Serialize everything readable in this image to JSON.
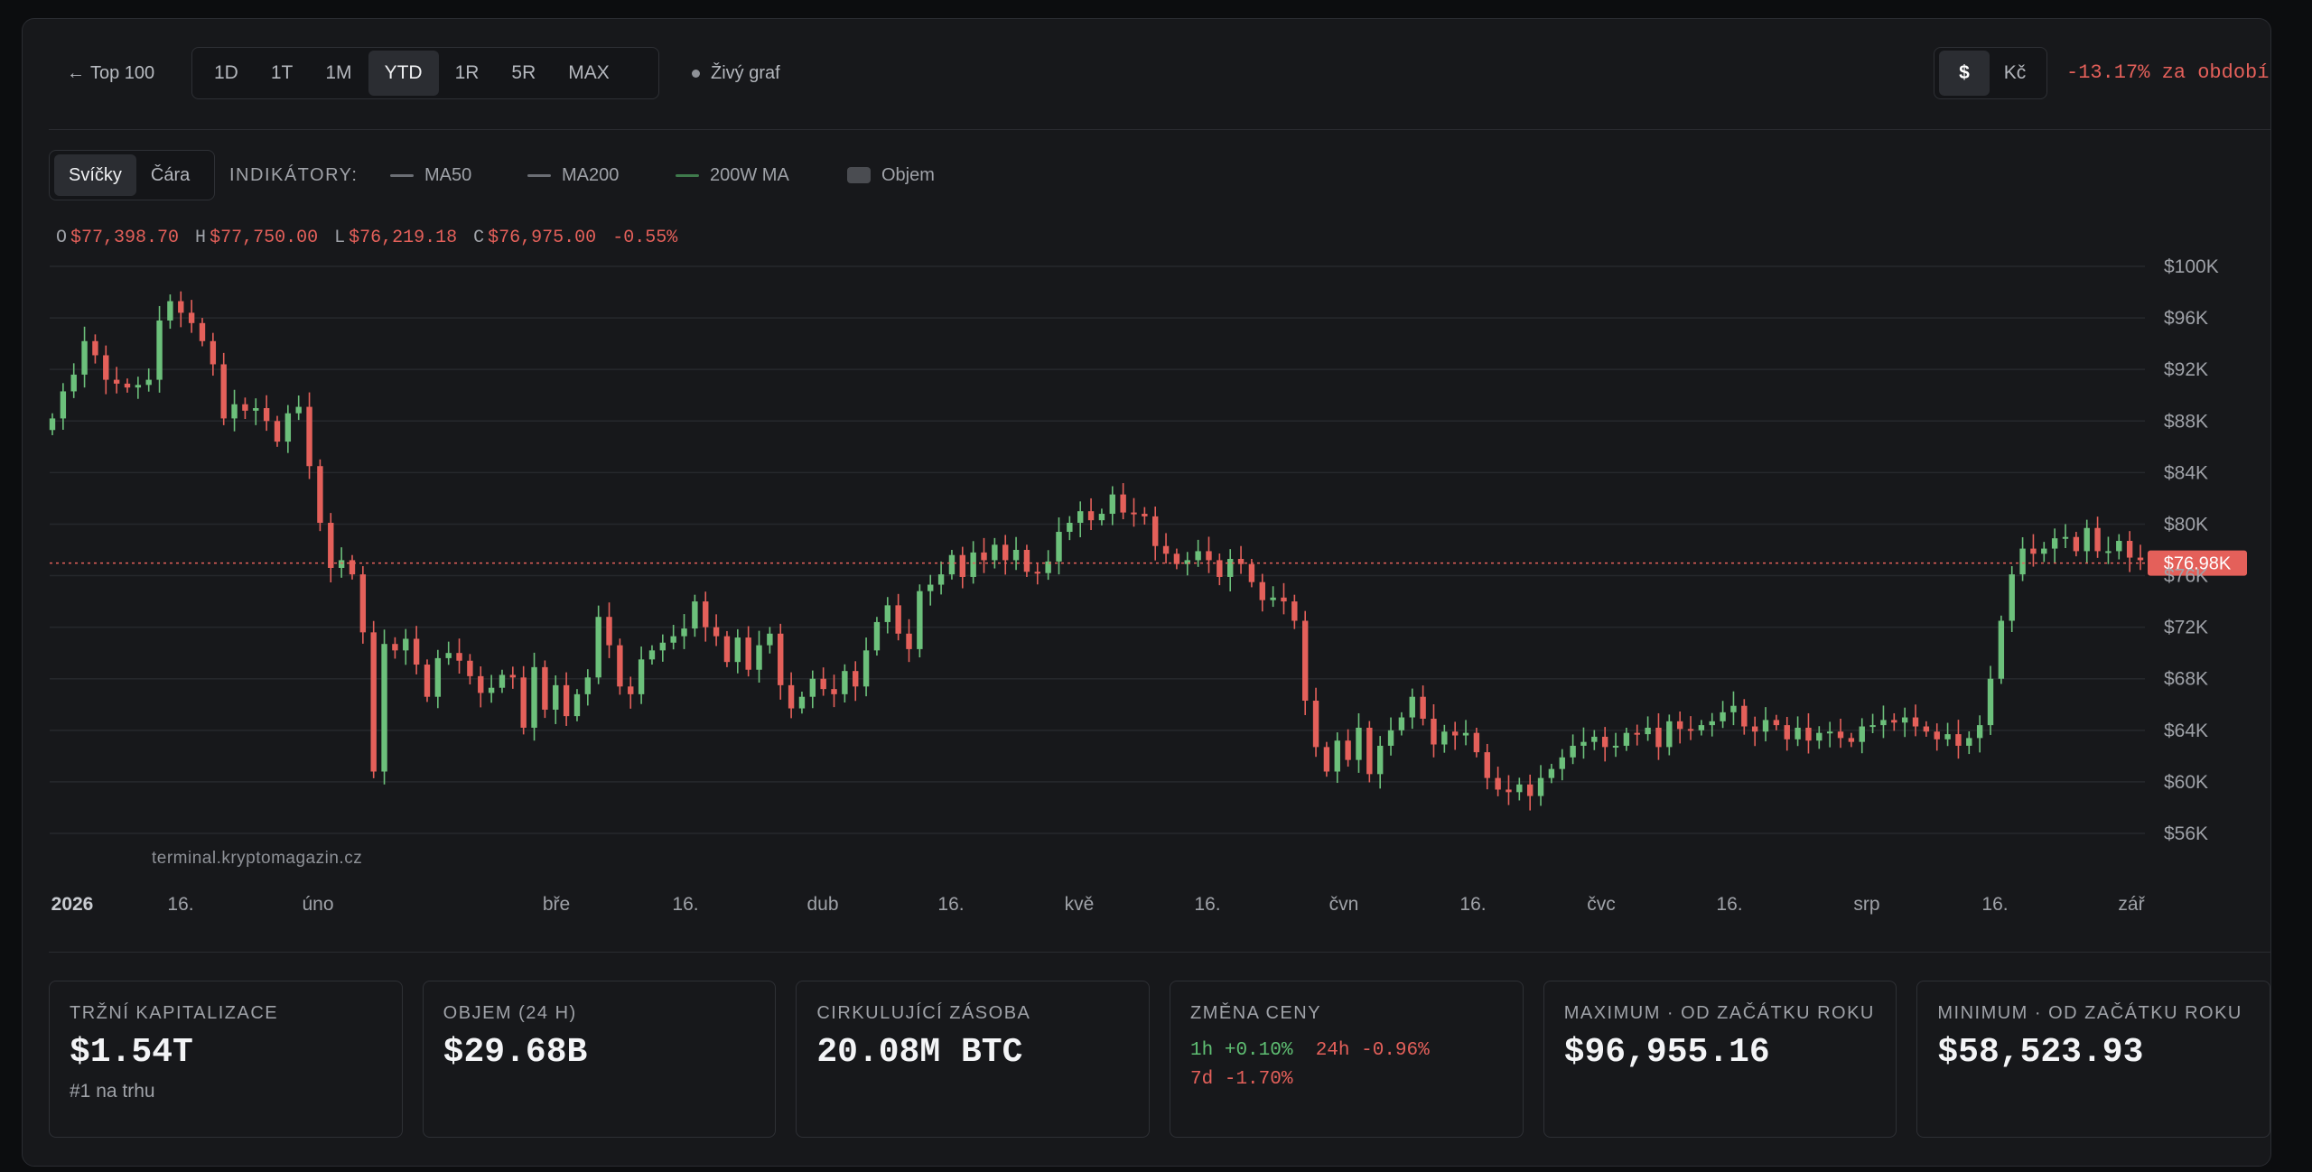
{
  "toolbar": {
    "back_label": "Top 100",
    "ranges": [
      "1D",
      "1T",
      "1M",
      "YTD",
      "1R",
      "5R",
      "MAX"
    ],
    "active_range": "YTD",
    "live_label": "Živý graf",
    "currencies": [
      "$",
      "Kč"
    ],
    "active_currency": "$",
    "period_change": "-13.17% za období"
  },
  "chart_controls": {
    "views": [
      "Svíčky",
      "Čára"
    ],
    "active_view": "Svíčky",
    "indicators_label": "INDIKÁTORY:",
    "indicators": [
      {
        "name": "MA50",
        "color": "#6b6e74"
      },
      {
        "name": "MA200",
        "color": "#6b6e74"
      },
      {
        "name": "200W MA",
        "color": "#3f7a4c"
      },
      {
        "name": "Objem",
        "color": "#4a4c51"
      }
    ]
  },
  "ohlc": {
    "o_label": "O",
    "o_value": "$77,398.70",
    "h_label": "H",
    "h_value": "$77,750.00",
    "l_label": "L",
    "l_value": "$76,219.18",
    "c_label": "C",
    "c_value": "$76,975.00",
    "change": "-0.55%"
  },
  "chart_data": {
    "type": "candlestick",
    "y_ticks": [
      "$100K",
      "$96K",
      "$92K",
      "$88K",
      "$84K",
      "$80K",
      "$76K",
      "$72K",
      "$68K",
      "$64K",
      "$60K",
      "$56K"
    ],
    "y_range": [
      56000,
      100000
    ],
    "x_ticks": [
      "2026",
      "16.",
      "úno",
      "bře",
      "16.",
      "dub",
      "16.",
      "kvě",
      "16.",
      "čvn",
      "16.",
      "čvc",
      "16.",
      "srp",
      "16.",
      "zář"
    ],
    "current_price": 76975,
    "current_price_label": "$76.98K",
    "up_color": "#6cc07b",
    "down_color": "#e4605a",
    "grid": true,
    "closes": [
      88200,
      90300,
      91600,
      94200,
      93100,
      91200,
      90900,
      90600,
      90800,
      91200,
      95800,
      97300,
      96400,
      95600,
      94200,
      92400,
      88200,
      89300,
      88800,
      89000,
      88000,
      86400,
      88600,
      89100,
      84500,
      80100,
      76600,
      77200,
      76100,
      71600,
      60800,
      70700,
      70200,
      71100,
      69100,
      66600,
      69600,
      70000,
      69400,
      68200,
      66900,
      67300,
      68300,
      68100,
      64200,
      68900,
      65600,
      67500,
      65100,
      66800,
      68100,
      72800,
      70600,
      67400,
      66800,
      69500,
      70200,
      70800,
      71300,
      71900,
      74000,
      72000,
      71300,
      69300,
      71200,
      68700,
      70600,
      71500,
      67500,
      65700,
      66600,
      68000,
      67200,
      66800,
      68600,
      67400,
      70200,
      72400,
      73700,
      71500,
      70300,
      74800,
      75300,
      76100,
      77600,
      75900,
      77800,
      77200,
      78400,
      77200,
      78000,
      76300,
      76200,
      77100,
      79400,
      80100,
      81000,
      80300,
      80800,
      82300,
      80900,
      80800,
      80600,
      78300,
      77700,
      76900,
      77200,
      77900,
      77200,
      75900,
      77300,
      76900,
      75500,
      74100,
      74300,
      74000,
      72500,
      66300,
      62700,
      60800,
      63200,
      61700,
      64200,
      60600,
      62800,
      64000,
      65000,
      66600,
      64900,
      62900,
      63900,
      63600,
      63800,
      62300,
      60300,
      59400,
      59200,
      59800,
      58900,
      60300,
      61000,
      61900,
      62800,
      63100,
      63500,
      62700,
      62800,
      63800,
      63700,
      64200,
      62700,
      64700,
      64100,
      64000,
      64400,
      64700,
      65400,
      65900,
      64300,
      63900,
      64800,
      64400,
      63300,
      64200,
      63200,
      63800,
      63900,
      63400,
      63100,
      64300,
      64400,
      64800,
      64600,
      65000,
      64300,
      63900,
      63300,
      63700,
      62800,
      63400,
      64400,
      68000,
      72500,
      76100,
      78100,
      77700,
      78100,
      78900,
      79000,
      77900,
      79700,
      77900,
      77900,
      78700,
      77400,
      77200
    ]
  },
  "watermark": "terminal.kryptomagazin.cz",
  "stats": [
    {
      "title": "TRŽNÍ KAPITALIZACE",
      "value": "$1.54T",
      "sub": "#1 na trhu"
    },
    {
      "title": "OBJEM (24 H)",
      "value": "$29.68B"
    },
    {
      "title": "CIRKULUJÍCÍ ZÁSOBA",
      "value": "20.08M BTC"
    },
    {
      "title": "ZMĚNA CENY",
      "changes": [
        {
          "label": "1h",
          "value": "+0.10%",
          "dir": "up"
        },
        {
          "label": "24h",
          "value": "-0.96%",
          "dir": "down"
        },
        {
          "label": "7d",
          "value": "-1.70%",
          "dir": "down"
        }
      ]
    },
    {
      "title": "MAXIMUM · OD ZAČÁTKU ROKU",
      "value": "$96,955.16"
    },
    {
      "title": "MINIMUM · OD ZAČÁTKU ROKU",
      "value": "$58,523.93"
    }
  ]
}
